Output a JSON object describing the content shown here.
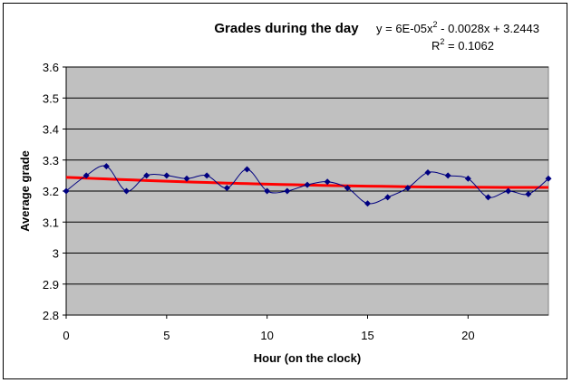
{
  "chart_data": {
    "type": "line",
    "title": "Grades during the day",
    "x_label": "Hour (on the clock)",
    "y_label": "Average grade",
    "x": [
      0,
      1,
      2,
      3,
      4,
      5,
      6,
      7,
      8,
      9,
      10,
      11,
      12,
      13,
      14,
      15,
      16,
      17,
      18,
      19,
      20,
      21,
      22,
      23,
      24
    ],
    "series": [
      {
        "color": "#000080",
        "values": [
          3.2,
          3.25,
          3.28,
          3.2,
          3.25,
          3.25,
          3.24,
          3.25,
          3.21,
          3.27,
          3.2,
          3.2,
          3.22,
          3.23,
          3.21,
          3.16,
          3.18,
          3.21,
          3.26,
          3.25,
          3.24,
          3.18,
          3.2,
          3.19,
          3.24
        ]
      }
    ],
    "trendline": {
      "color": "#ff0000",
      "values": [
        3.2443,
        3.2416,
        3.2389,
        3.2365,
        3.2341,
        3.2318,
        3.2297,
        3.2276,
        3.2257,
        3.224,
        3.2223,
        3.2208,
        3.2193,
        3.218,
        3.2169,
        3.2158,
        3.2149,
        3.214,
        3.2133,
        3.2127,
        3.2123,
        3.2119,
        3.2117,
        3.2117,
        3.2117
      ],
      "equation": [
        "y = 6E-05x",
        "2",
        " - 0.0028x + 3.2443"
      ],
      "r_squared": [
        "R",
        "2",
        " = 0.1062"
      ]
    },
    "xlim": [
      0,
      24
    ],
    "xticks": [
      0,
      5,
      10,
      15,
      20
    ],
    "ylim": [
      2.8,
      3.6
    ],
    "yticks": [
      2.8,
      2.9,
      3,
      3.1,
      3.2,
      3.3,
      3.4,
      3.5,
      3.6
    ],
    "grid": true,
    "plot_background": "#c0c0c0"
  }
}
